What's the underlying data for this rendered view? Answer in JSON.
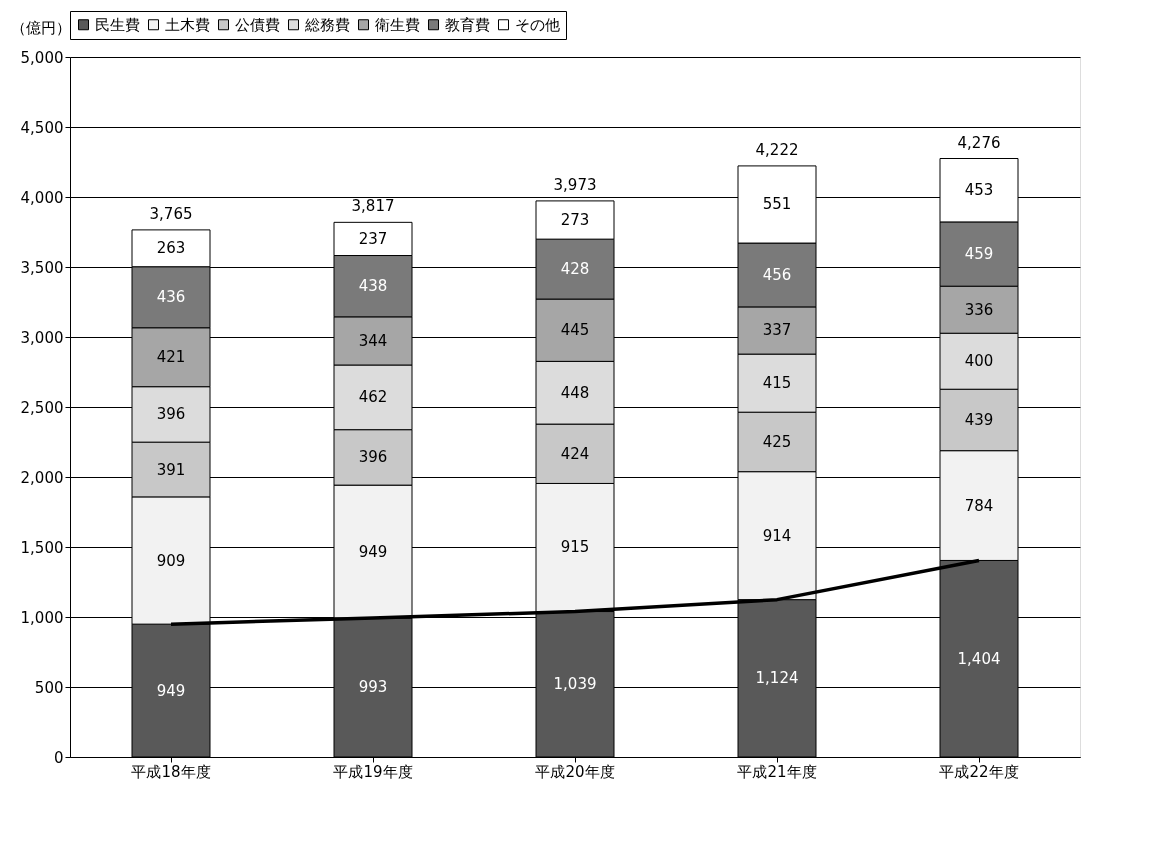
{
  "chart_data": {
    "type": "bar",
    "stacked": true,
    "ylabel": "（億円）",
    "categories": [
      "平成18年度",
      "平成19年度",
      "平成20年度",
      "平成21年度",
      "平成22年度"
    ],
    "series": [
      {
        "name": "民生費",
        "color": "#595959",
        "values": [
          949,
          993,
          1039,
          1124,
          1404
        ],
        "value_labels": [
          "949",
          "993",
          "1,039",
          "1,124",
          "1,404"
        ]
      },
      {
        "name": "土木費",
        "color": "#f2f2f2",
        "values": [
          909,
          949,
          915,
          914,
          784
        ],
        "value_labels": [
          "909",
          "949",
          "915",
          "914",
          "784"
        ]
      },
      {
        "name": "公債費",
        "color": "#c8c8c8",
        "values": [
          391,
          396,
          424,
          425,
          439
        ],
        "value_labels": [
          "391",
          "396",
          "424",
          "425",
          "439"
        ]
      },
      {
        "name": "総務費",
        "color": "#dcdcdc",
        "values": [
          396,
          462,
          448,
          415,
          400
        ],
        "value_labels": [
          "396",
          "462",
          "448",
          "415",
          "400"
        ]
      },
      {
        "name": "衛生費",
        "color": "#a6a6a6",
        "values": [
          421,
          344,
          445,
          337,
          336
        ],
        "value_labels": [
          "421",
          "344",
          "445",
          "337",
          "336"
        ]
      },
      {
        "name": "教育費",
        "color": "#7a7a7a",
        "values": [
          436,
          438,
          428,
          456,
          459
        ],
        "value_labels": [
          "436",
          "438",
          "428",
          "456",
          "459"
        ]
      },
      {
        "name": "その他",
        "color": "#ffffff",
        "values": [
          263,
          237,
          273,
          551,
          453
        ],
        "value_labels": [
          "263",
          "237",
          "273",
          "551",
          "453"
        ]
      },
      {
        "type": "line",
        "color": "#000000",
        "values": [
          949,
          993,
          1039,
          1124,
          1404
        ]
      }
    ],
    "totals": [
      "3,765",
      "3,817",
      "3,973",
      "4,222",
      "4,276"
    ],
    "ylim": [
      0,
      5000
    ],
    "yticks": [
      0,
      500,
      {
        "value": 1000,
        "label": "1,000"
      },
      {
        "value": 1500,
        "label": "1,500"
      },
      {
        "value": 2000,
        "label": "2,000"
      },
      {
        "value": 2500,
        "label": "2,500"
      },
      {
        "value": 3000,
        "label": "3,000"
      },
      {
        "value": 3500,
        "label": "3,500"
      },
      {
        "value": 4000,
        "label": "4,000"
      },
      {
        "value": 4500,
        "label": "4,500"
      },
      {
        "value": 5000,
        "label": "5,000"
      }
    ],
    "grid": "y",
    "legend": "top"
  }
}
